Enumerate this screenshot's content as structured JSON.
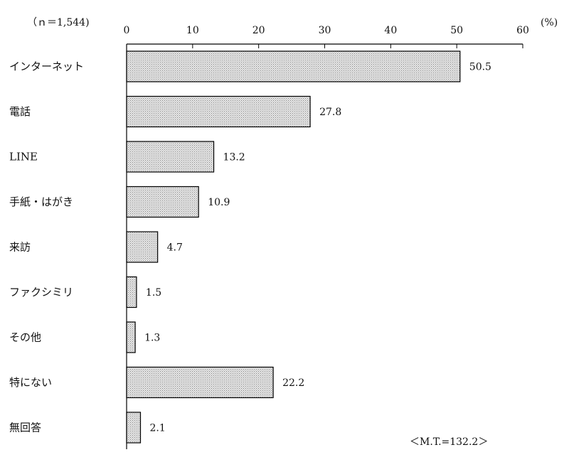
{
  "chart_data": {
    "type": "bar",
    "orientation": "horizontal",
    "sample_note": "（ｎ＝1,544)",
    "unit": "(%)",
    "xlim": [
      0,
      60
    ],
    "ticks": [
      0,
      10,
      20,
      30,
      40,
      50,
      60
    ],
    "categories": [
      "インターネット",
      "電話",
      "LINE",
      "手紙・はがき",
      "来訪",
      "ファクシミリ",
      "その他",
      "特にない",
      "無回答"
    ],
    "values": [
      50.5,
      27.8,
      13.2,
      10.9,
      4.7,
      1.5,
      1.3,
      22.2,
      2.1
    ],
    "value_labels": [
      "50.5",
      "27.8",
      "13.2",
      "10.9",
      "4.7",
      "1.5",
      "1.3",
      "22.2",
      "2.1"
    ],
    "total_note": "＜M.T.=132.2＞",
    "bar_fill": "#d4d4d4",
    "bar_stroke": "#000000"
  }
}
